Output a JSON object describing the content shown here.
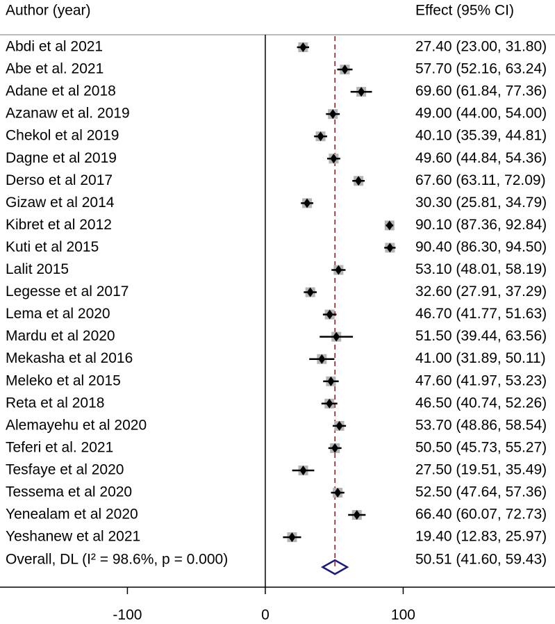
{
  "chart_data": {
    "type": "forest",
    "header_left": "Author (year)",
    "header_right": "Effect (95% CI)",
    "categories": [
      "Abdi  et al 2021",
      "Abe et al. 2021",
      "Adane et al 2018",
      "Azanaw et al. 2019",
      "Chekol et al 2019",
      "Dagne et al 2019",
      "Derso et al 2017",
      "Gizaw et al 2014",
      "Kibret et al 2012",
      "Kuti et al 2015",
      "Lalit 2015",
      "Legesse et al 2017",
      "Lema et al 2020",
      "Mardu et al 2020",
      "Mekasha et al 2016",
      "Meleko et al 2015",
      "Reta et al 2018",
      "Alemayehu et al 2020",
      "Teferi et al. 2021",
      "Tesfaye et al 2020",
      "Tessema et al 2020",
      "Yenealam et al 2020",
      "Yeshanew et al 2021"
    ],
    "values": [
      27.4,
      57.7,
      69.6,
      49.0,
      40.1,
      49.6,
      67.6,
      30.3,
      90.1,
      90.4,
      53.1,
      32.6,
      46.7,
      51.5,
      41.0,
      47.6,
      46.5,
      53.7,
      50.5,
      27.5,
      52.5,
      66.4,
      19.4
    ],
    "lower": [
      23.0,
      52.16,
      61.84,
      44.0,
      35.39,
      44.84,
      63.11,
      25.81,
      87.36,
      86.3,
      48.01,
      27.91,
      41.77,
      39.44,
      31.89,
      41.97,
      40.74,
      48.86,
      45.73,
      19.51,
      47.64,
      60.07,
      12.83
    ],
    "upper": [
      31.8,
      63.24,
      77.36,
      54.0,
      44.81,
      54.36,
      72.09,
      34.79,
      92.84,
      94.5,
      58.19,
      37.29,
      51.63,
      63.56,
      50.11,
      53.23,
      52.26,
      58.54,
      55.27,
      35.49,
      57.36,
      72.73,
      25.97
    ],
    "value_labels": [
      "27.40 (23.00, 31.80)",
      "57.70 (52.16, 63.24)",
      "69.60 (61.84, 77.36)",
      "49.00 (44.00, 54.00)",
      "40.10 (35.39, 44.81)",
      "49.60 (44.84, 54.36)",
      "67.60 (63.11, 72.09)",
      "30.30 (25.81, 34.79)",
      "90.10 (87.36, 92.84)",
      "90.40 (86.30, 94.50)",
      "53.10 (48.01, 58.19)",
      "32.60 (27.91, 37.29)",
      "46.70 (41.77, 51.63)",
      "51.50 (39.44, 63.56)",
      "41.00 (31.89, 50.11)",
      "47.60 (41.97, 53.23)",
      "46.50 (40.74, 52.26)",
      "53.70 (48.86, 58.54)",
      "50.50 (45.73, 55.27)",
      "27.50 (19.51, 35.49)",
      "52.50 (47.64, 57.36)",
      "66.40 (60.07, 72.73)",
      "19.40 (12.83, 25.97)"
    ],
    "overall": {
      "label": "Overall, DL (I² = 98.6%, p = 0.000)",
      "value": 50.51,
      "lower": 41.6,
      "upper": 59.43,
      "value_label": "50.51 (41.60, 59.43)"
    },
    "null_line": 0,
    "xlim": [
      -192.4,
      210.1
    ],
    "xticks": [
      -100,
      0,
      100
    ],
    "box_color": "#b4b4b4",
    "point_color": "#000000",
    "diamond_color": "#1a1a7e",
    "reference_color": "#8b2a2a"
  }
}
